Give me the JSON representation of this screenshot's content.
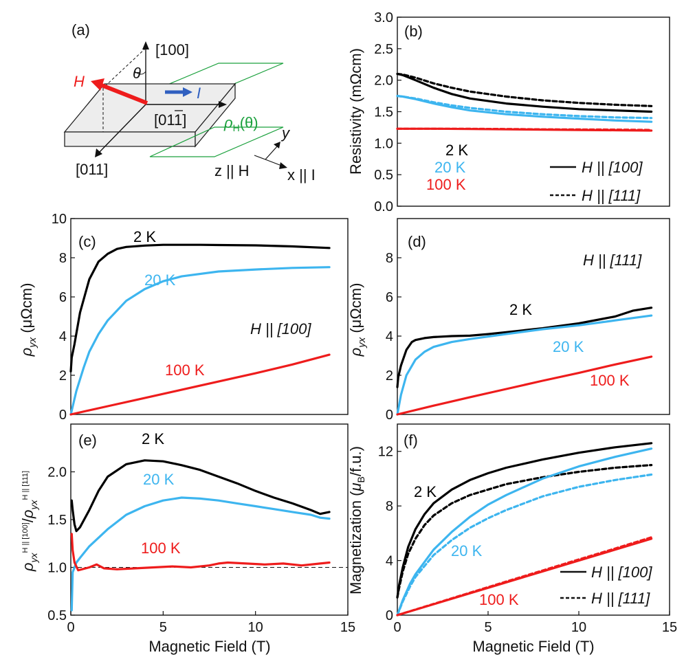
{
  "colors": {
    "black": "#000000",
    "cyan": "#3db5ef",
    "red": "#ee1c1c",
    "green": "#1aa03c",
    "blue": "#3060c0",
    "gray": "#e9e9e9"
  },
  "panel_a": {
    "label": "(a)",
    "dir_100": "[100]",
    "dir_011": "[011]",
    "dir_0-11_pre": "[0",
    "dir_0-11_mid": "1",
    "dir_0-11_over": "1",
    "dir_0-11_post": "]",
    "theta": "θ",
    "H": "H",
    "I": "I",
    "rho": "ρ",
    "rho_sub": "H",
    "rho_arg": "(θ)",
    "axis_y": "y",
    "axis_z": "z || H",
    "axis_x": "x || I"
  },
  "chart_data": [
    {
      "id": "b",
      "type": "line",
      "label": "(b)",
      "title": "",
      "xlabel": "",
      "ylabel": "Resistivity (mΩcm)",
      "xlim": [
        0,
        15
      ],
      "ylim": [
        0,
        3.0
      ],
      "xticks": [],
      "yticks": [
        "0.0",
        "0.5",
        "1.0",
        "1.5",
        "2.0",
        "2.5",
        "3.0"
      ],
      "series": [
        {
          "name": "2 K, H || [100]",
          "color": "black",
          "dash": false,
          "x": [
            0,
            0.3,
            1,
            2,
            3,
            4,
            6,
            8,
            10,
            12,
            14
          ],
          "y": [
            2.1,
            2.08,
            2.0,
            1.88,
            1.78,
            1.71,
            1.63,
            1.58,
            1.54,
            1.52,
            1.5
          ]
        },
        {
          "name": "2 K, H || [111]",
          "color": "black",
          "dash": true,
          "x": [
            0,
            0.3,
            1,
            2,
            3,
            4,
            6,
            8,
            10,
            12,
            14
          ],
          "y": [
            2.1,
            2.09,
            2.04,
            1.95,
            1.88,
            1.82,
            1.74,
            1.68,
            1.64,
            1.61,
            1.59
          ]
        },
        {
          "name": "20 K, H || [100]",
          "color": "cyan",
          "dash": false,
          "x": [
            0,
            0.3,
            1,
            2,
            3,
            4,
            6,
            8,
            10,
            12,
            14
          ],
          "y": [
            1.75,
            1.74,
            1.7,
            1.63,
            1.57,
            1.52,
            1.46,
            1.42,
            1.39,
            1.36,
            1.34
          ]
        },
        {
          "name": "20 K, H || [111]",
          "color": "cyan",
          "dash": true,
          "x": [
            0,
            0.3,
            1,
            2,
            3,
            4,
            6,
            8,
            10,
            12,
            14
          ],
          "y": [
            1.75,
            1.74,
            1.71,
            1.65,
            1.6,
            1.56,
            1.5,
            1.46,
            1.43,
            1.41,
            1.4
          ]
        },
        {
          "name": "100 K, H || [100]",
          "color": "red",
          "dash": false,
          "x": [
            0,
            2,
            4,
            6,
            8,
            10,
            12,
            14
          ],
          "y": [
            1.23,
            1.23,
            1.225,
            1.22,
            1.215,
            1.21,
            1.205,
            1.2
          ]
        },
        {
          "name": "100 K, H || [111]",
          "color": "red",
          "dash": true,
          "x": [
            0,
            2,
            4,
            6,
            8,
            10,
            12,
            14
          ],
          "y": [
            1.23,
            1.23,
            1.228,
            1.225,
            1.22,
            1.218,
            1.215,
            1.21
          ]
        }
      ],
      "annotations": [
        {
          "text": "2 K",
          "color": "black"
        },
        {
          "text": "20 K",
          "color": "cyan"
        },
        {
          "text": "100 K",
          "color": "red"
        }
      ],
      "legend": [
        {
          "label": "H || [100]",
          "dash": false
        },
        {
          "label": "H || [111]",
          "dash": true
        }
      ]
    },
    {
      "id": "c",
      "type": "line",
      "label": "(c)",
      "title": "",
      "xlabel": "",
      "ylabel": "ρyx (μΩcm)",
      "xlim": [
        0,
        15
      ],
      "ylim": [
        0,
        10
      ],
      "xticks": [],
      "yticks": [
        "0",
        "2",
        "4",
        "6",
        "8",
        "10"
      ],
      "series": [
        {
          "name": "2 K",
          "color": "black",
          "dash": false,
          "x": [
            0,
            0.05,
            0.2,
            0.5,
            1,
            1.5,
            2,
            2.5,
            3,
            4,
            5,
            6,
            7,
            8,
            10,
            12,
            14
          ],
          "y": [
            2.2,
            2.9,
            3.6,
            5.2,
            6.9,
            7.8,
            8.2,
            8.45,
            8.55,
            8.62,
            8.66,
            8.66,
            8.66,
            8.65,
            8.63,
            8.58,
            8.5
          ]
        },
        {
          "name": "20 K",
          "color": "cyan",
          "dash": false,
          "x": [
            0,
            0.3,
            0.7,
            1,
            1.5,
            2,
            3,
            4,
            5,
            6,
            8,
            10,
            12,
            14
          ],
          "y": [
            0,
            1.2,
            2.4,
            3.2,
            4.1,
            4.8,
            5.8,
            6.4,
            6.8,
            7.05,
            7.3,
            7.4,
            7.48,
            7.52
          ]
        },
        {
          "name": "100 K",
          "color": "red",
          "dash": false,
          "x": [
            0,
            2,
            4,
            6,
            8,
            10,
            12,
            14
          ],
          "y": [
            0,
            0.42,
            0.84,
            1.26,
            1.68,
            2.1,
            2.55,
            3.05
          ]
        }
      ],
      "annotations": [
        {
          "text": "2 K",
          "color": "black"
        },
        {
          "text": "20 K",
          "color": "cyan"
        },
        {
          "text": "100 K",
          "color": "red"
        },
        {
          "text": "H || [100]",
          "color": "black"
        }
      ]
    },
    {
      "id": "d",
      "type": "line",
      "label": "(d)",
      "title": "",
      "xlabel": "",
      "ylabel": "ρyx (μΩcm)",
      "xlim": [
        0,
        15
      ],
      "ylim": [
        0,
        10
      ],
      "xticks": [],
      "yticks": [
        "0",
        "2",
        "4",
        "6",
        "8"
      ],
      "series": [
        {
          "name": "2 K",
          "color": "black",
          "dash": false,
          "x": [
            0,
            0.05,
            0.2,
            0.5,
            0.8,
            1,
            1.5,
            2,
            3,
            4,
            5,
            6,
            8,
            10,
            12,
            13,
            14
          ],
          "y": [
            1.4,
            1.9,
            2.5,
            3.3,
            3.7,
            3.8,
            3.9,
            3.95,
            4.0,
            4.02,
            4.1,
            4.2,
            4.4,
            4.65,
            5.0,
            5.3,
            5.45
          ]
        },
        {
          "name": "20 K",
          "color": "cyan",
          "dash": false,
          "x": [
            0,
            0.2,
            0.5,
            1,
            1.5,
            2,
            3,
            4,
            6,
            8,
            10,
            12,
            14
          ],
          "y": [
            0,
            1.0,
            2.0,
            2.8,
            3.2,
            3.45,
            3.7,
            3.85,
            4.1,
            4.35,
            4.55,
            4.8,
            5.05
          ]
        },
        {
          "name": "100 K",
          "color": "red",
          "dash": false,
          "x": [
            0,
            2,
            4,
            6,
            8,
            10,
            12,
            14
          ],
          "y": [
            0,
            0.45,
            0.88,
            1.3,
            1.72,
            2.12,
            2.55,
            2.95
          ]
        }
      ],
      "annotations": [
        {
          "text": "2 K",
          "color": "black"
        },
        {
          "text": "20 K",
          "color": "cyan"
        },
        {
          "text": "100 K",
          "color": "red"
        },
        {
          "text": "H || [111]",
          "color": "black"
        }
      ]
    },
    {
      "id": "e",
      "type": "line",
      "label": "(e)",
      "title": "",
      "xlabel": "Magnetic Field (T)",
      "ylabel": "ρyx^H||[100] / ρyx^H||[111]",
      "xlim": [
        0,
        15
      ],
      "ylim": [
        0.5,
        2.5
      ],
      "xticks": [
        "0",
        "5",
        "10",
        "15"
      ],
      "yticks": [
        "0.5",
        "1.0",
        "1.5",
        "2.0"
      ],
      "reference_line": 1.0,
      "series": [
        {
          "name": "2 K",
          "color": "black",
          "dash": false,
          "x": [
            0.05,
            0.1,
            0.2,
            0.3,
            0.5,
            1,
            1.5,
            2,
            3,
            4,
            5,
            6,
            7,
            8,
            9,
            10,
            11,
            12,
            13,
            13.5,
            14
          ],
          "y": [
            1.7,
            1.6,
            1.45,
            1.38,
            1.42,
            1.6,
            1.8,
            1.95,
            2.08,
            2.12,
            2.11,
            2.07,
            2.02,
            1.95,
            1.88,
            1.8,
            1.73,
            1.67,
            1.6,
            1.56,
            1.58
          ]
        },
        {
          "name": "20 K",
          "color": "cyan",
          "dash": false,
          "x": [
            0.05,
            0.1,
            0.3,
            0.5,
            1,
            2,
            3,
            4,
            5,
            6,
            7,
            8,
            9,
            10,
            11,
            12,
            13,
            13.5,
            14
          ],
          "y": [
            0.55,
            0.95,
            1.05,
            1.1,
            1.22,
            1.4,
            1.55,
            1.64,
            1.7,
            1.73,
            1.72,
            1.7,
            1.67,
            1.64,
            1.61,
            1.58,
            1.55,
            1.52,
            1.51
          ]
        },
        {
          "name": "100 K",
          "color": "red",
          "dash": false,
          "x": [
            0.05,
            0.1,
            0.2,
            0.4,
            0.6,
            1,
            1.4,
            1.8,
            2.5,
            3.5,
            4.5,
            5.5,
            6.5,
            7.5,
            8,
            8.5,
            9.5,
            10.5,
            11.5,
            12.5,
            13.5,
            14
          ],
          "y": [
            1.35,
            1.18,
            1.05,
            0.97,
            0.98,
            1.0,
            1.03,
            0.99,
            0.98,
            0.99,
            1.0,
            1.01,
            1.0,
            1.02,
            1.04,
            1.05,
            1.04,
            1.03,
            1.04,
            1.02,
            1.04,
            1.05
          ]
        }
      ],
      "annotations": [
        {
          "text": "2 K",
          "color": "black"
        },
        {
          "text": "20 K",
          "color": "cyan"
        },
        {
          "text": "100 K",
          "color": "red"
        }
      ]
    },
    {
      "id": "f",
      "type": "line",
      "label": "(f)",
      "title": "",
      "xlabel": "Magnetic Field (T)",
      "ylabel": "Magnetization (μB/f.u.)",
      "xlim": [
        0,
        15
      ],
      "ylim": [
        0,
        14
      ],
      "xticks": [
        "0",
        "5",
        "10",
        "15"
      ],
      "yticks": [
        "0",
        "4",
        "8",
        "12"
      ],
      "series": [
        {
          "name": "2 K, H || [100]",
          "color": "black",
          "dash": false,
          "x": [
            0,
            0.1,
            0.3,
            0.6,
            1,
            1.5,
            2,
            3,
            4,
            5,
            6,
            8,
            10,
            12,
            14
          ],
          "y": [
            1.3,
            2.2,
            3.5,
            5.0,
            6.3,
            7.4,
            8.2,
            9.2,
            9.9,
            10.4,
            10.8,
            11.4,
            11.9,
            12.3,
            12.6
          ]
        },
        {
          "name": "2 K, H || [111]",
          "color": "black",
          "dash": true,
          "x": [
            0,
            0.1,
            0.3,
            0.6,
            1,
            1.5,
            2,
            3,
            4,
            5,
            6,
            8,
            10,
            12,
            14
          ],
          "y": [
            1.3,
            2.0,
            3.2,
            4.5,
            5.6,
            6.6,
            7.3,
            8.2,
            8.8,
            9.2,
            9.6,
            10.1,
            10.5,
            10.8,
            11.0
          ]
        },
        {
          "name": "20 K, H || [100]",
          "color": "cyan",
          "dash": false,
          "x": [
            0,
            0.3,
            0.7,
            1,
            2,
            3,
            4,
            5,
            6,
            8,
            10,
            12,
            14
          ],
          "y": [
            0,
            1.1,
            2.3,
            3.0,
            4.8,
            6.1,
            7.2,
            8.1,
            8.8,
            10.0,
            10.9,
            11.6,
            12.2
          ]
        },
        {
          "name": "20 K, H || [111]",
          "color": "cyan",
          "dash": true,
          "x": [
            0,
            0.3,
            0.7,
            1,
            2,
            3,
            4,
            5,
            6,
            8,
            10,
            12,
            14
          ],
          "y": [
            0,
            1.0,
            2.1,
            2.8,
            4.4,
            5.5,
            6.4,
            7.1,
            7.7,
            8.7,
            9.4,
            9.9,
            10.3
          ]
        },
        {
          "name": "100 K, H || [100]",
          "color": "red",
          "dash": false,
          "x": [
            0,
            2,
            4,
            6,
            8,
            10,
            12,
            14
          ],
          "y": [
            0,
            0.8,
            1.6,
            2.4,
            3.2,
            4.0,
            4.8,
            5.6
          ]
        },
        {
          "name": "100 K, H || [111]",
          "color": "red",
          "dash": true,
          "x": [
            0,
            2,
            4,
            6,
            8,
            10,
            12,
            14
          ],
          "y": [
            0,
            0.82,
            1.64,
            2.46,
            3.27,
            4.08,
            4.88,
            5.7
          ]
        }
      ],
      "annotations": [
        {
          "text": "2 K",
          "color": "black"
        },
        {
          "text": "20 K",
          "color": "cyan"
        },
        {
          "text": "100 K",
          "color": "red"
        }
      ],
      "legend": [
        {
          "label": "H || [100]",
          "dash": false
        },
        {
          "label": "H || [111]",
          "dash": true
        }
      ]
    }
  ]
}
